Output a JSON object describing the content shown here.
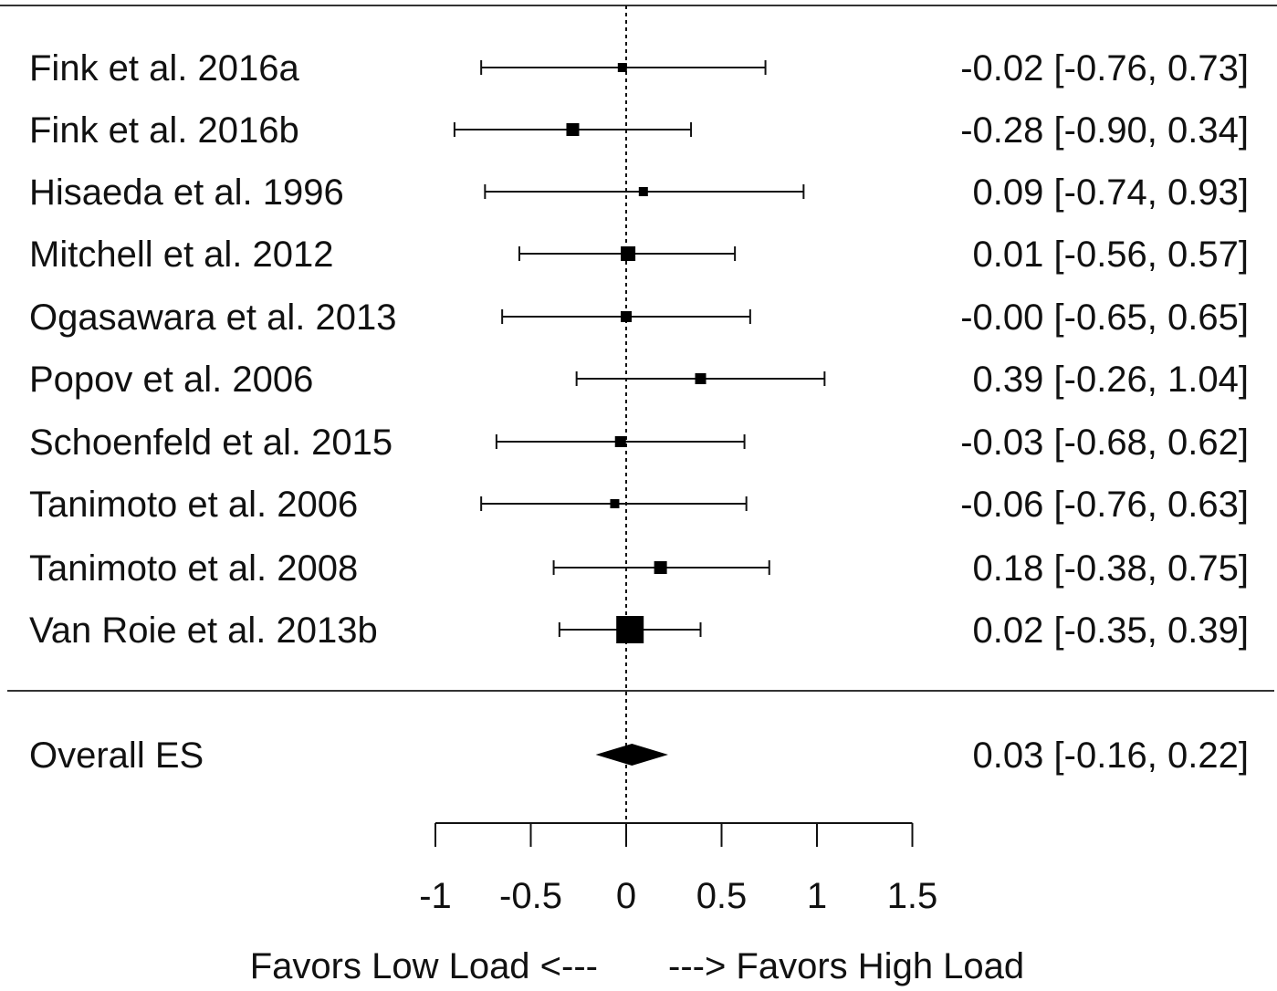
{
  "chart_data": {
    "type": "forest",
    "title": "",
    "studies": [
      {
        "label": "Fink et al. 2016a",
        "es": -0.02,
        "lo": -0.76,
        "hi": 0.73,
        "text": "-0.02 [-0.76, 0.73]",
        "weight": 1
      },
      {
        "label": "Fink et al. 2016b",
        "es": -0.28,
        "lo": -0.9,
        "hi": 0.34,
        "text": "-0.28 [-0.90, 0.34]",
        "weight": 1.4
      },
      {
        "label": "Hisaeda et al. 1996",
        "es": 0.09,
        "lo": -0.74,
        "hi": 0.93,
        "text": "0.09 [-0.74, 0.93]",
        "weight": 1
      },
      {
        "label": "Mitchell et al. 2012",
        "es": 0.01,
        "lo": -0.56,
        "hi": 0.57,
        "text": "0.01 [-0.56, 0.57]",
        "weight": 1.6
      },
      {
        "label": "Ogasawara et al. 2013",
        "es": -0.0,
        "lo": -0.65,
        "hi": 0.65,
        "text": "-0.00 [-0.65, 0.65]",
        "weight": 1.2
      },
      {
        "label": "Popov et al. 2006",
        "es": 0.39,
        "lo": -0.26,
        "hi": 1.04,
        "text": "0.39 [-0.26, 1.04]",
        "weight": 1.2
      },
      {
        "label": "Schoenfeld et al. 2015",
        "es": -0.03,
        "lo": -0.68,
        "hi": 0.62,
        "text": "-0.03 [-0.68, 0.62]",
        "weight": 1.2
      },
      {
        "label": "Tanimoto et al. 2006",
        "es": -0.06,
        "lo": -0.76,
        "hi": 0.63,
        "text": "-0.06 [-0.76, 0.63]",
        "weight": 1
      },
      {
        "label": "Tanimoto et al. 2008",
        "es": 0.18,
        "lo": -0.38,
        "hi": 0.75,
        "text": "0.18 [-0.38, 0.75]",
        "weight": 1.4
      },
      {
        "label": "Van Roie et al. 2013b",
        "es": 0.02,
        "lo": -0.35,
        "hi": 0.39,
        "text": "0.02 [-0.35, 0.39]",
        "weight": 3
      }
    ],
    "overall": {
      "label": "Overall ES",
      "es": 0.03,
      "lo": -0.16,
      "hi": 0.22,
      "text": "0.03 [-0.16, 0.22]"
    },
    "xlim": [
      -1,
      1.5
    ],
    "xticks": [
      -1,
      -0.5,
      0,
      0.5,
      1,
      1.5
    ],
    "xtick_labels": [
      "-1",
      "-0.5",
      "0",
      "0.5",
      "1",
      "1.5"
    ],
    "reference_line": 0,
    "xlabel_left": "Favors Low Load <---",
    "xlabel_right": "---> Favors High Load"
  }
}
